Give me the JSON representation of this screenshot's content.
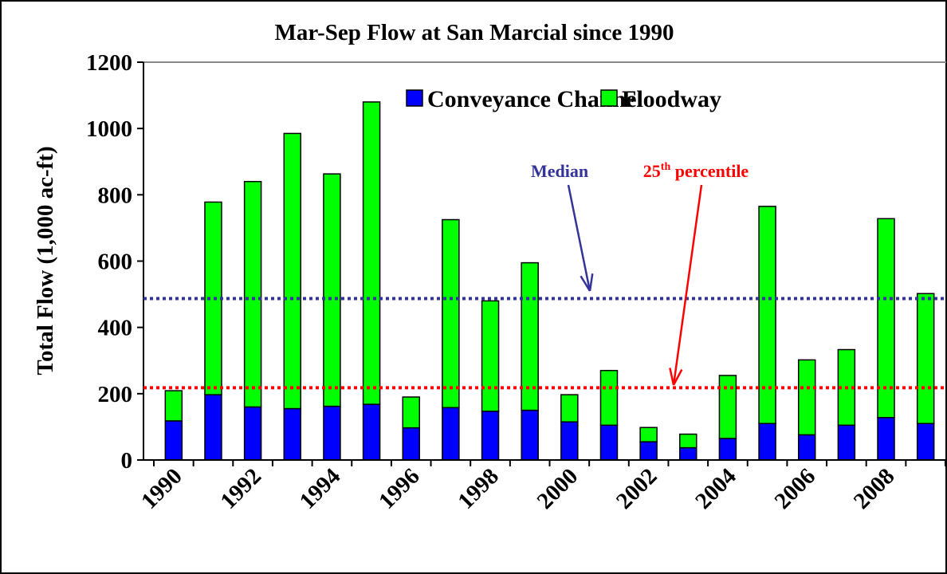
{
  "chart_data": {
    "type": "stacked_bar",
    "title": "Mar-Sep Flow at San Marcial since 1990",
    "y_label": "Total Flow (1,000 ac-ft)",
    "categories": [
      "1990",
      null,
      "1992",
      null,
      "1994",
      null,
      "1996",
      null,
      "1998",
      null,
      "2000",
      null,
      "2002",
      null,
      "2004",
      null,
      "2006",
      null,
      "2008",
      null
    ],
    "series": [
      {
        "name": "Conveyance Channel",
        "color": "#0000ff",
        "values": [
          118,
          197,
          160,
          155,
          162,
          168,
          97,
          158,
          147,
          150,
          115,
          105,
          55,
          37,
          65,
          110,
          76,
          105,
          128,
          110
        ]
      },
      {
        "name": "Floodway",
        "color": "#00ff00",
        "values": [
          91,
          581,
          680,
          830,
          701,
          912,
          93,
          567,
          333,
          445,
          82,
          165,
          43,
          41,
          190,
          655,
          226,
          228,
          600,
          392
        ]
      }
    ],
    "ylim": [
      0,
      1200
    ],
    "yticks": [
      0,
      200,
      400,
      600,
      800,
      1000,
      1200
    ],
    "reference_lines": [
      {
        "label": "Median",
        "value": 487,
        "color": "#333399"
      },
      {
        "label": "25",
        "label_sup": "th",
        "label_rest": " percentile",
        "value": 218,
        "color": "#ff0000"
      }
    ],
    "legend": "top-right"
  }
}
